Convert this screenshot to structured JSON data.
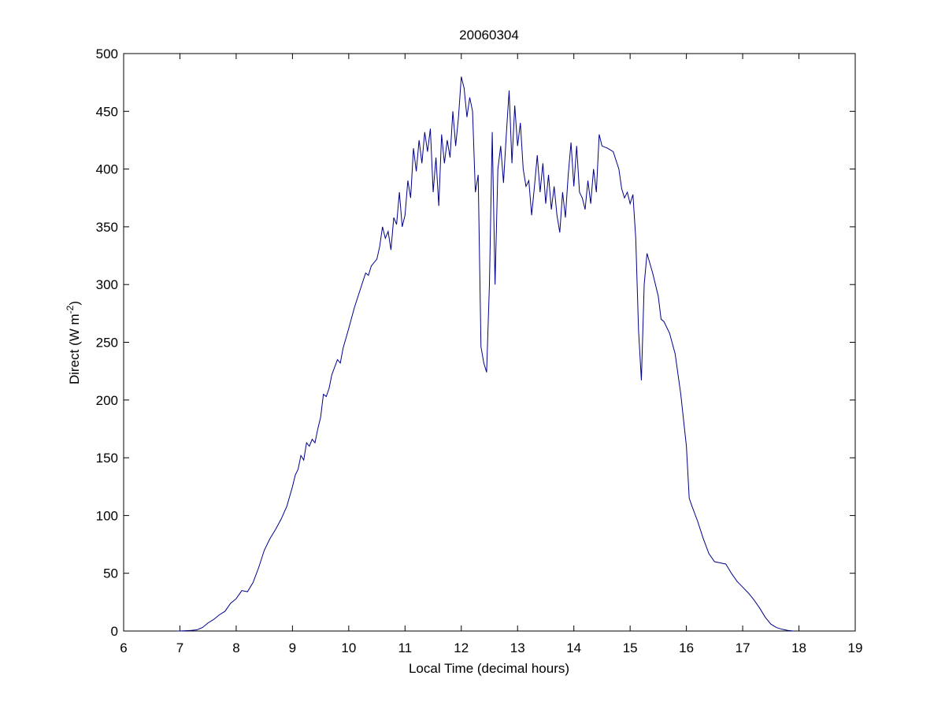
{
  "chart_data": {
    "type": "line",
    "title": "20060304",
    "xlabel": "Local Time (decimal hours)",
    "ylabel": {
      "text": "Direct (W m",
      "sup": "-2",
      "tail": ")"
    },
    "xlim": [
      6,
      19
    ],
    "xticks": [
      6,
      7,
      8,
      9,
      10,
      11,
      12,
      13,
      14,
      15,
      16,
      17,
      18,
      19
    ],
    "ylim": [
      0,
      500
    ],
    "yticks": [
      0,
      50,
      100,
      150,
      200,
      250,
      300,
      350,
      400,
      450,
      500
    ],
    "grid": false,
    "series": [
      {
        "color": "#00008b",
        "x": [
          6.95,
          7.0,
          7.2,
          7.3,
          7.4,
          7.5,
          7.6,
          7.7,
          7.8,
          7.9,
          8.0,
          8.1,
          8.2,
          8.3,
          8.4,
          8.5,
          8.6,
          8.7,
          8.8,
          8.9,
          9.0,
          9.05,
          9.1,
          9.15,
          9.2,
          9.25,
          9.3,
          9.35,
          9.4,
          9.45,
          9.5,
          9.55,
          9.6,
          9.65,
          9.7,
          9.8,
          9.85,
          9.9,
          10.0,
          10.1,
          10.2,
          10.3,
          10.35,
          10.4,
          10.5,
          10.55,
          10.6,
          10.65,
          10.7,
          10.75,
          10.8,
          10.85,
          10.9,
          10.95,
          11.0,
          11.05,
          11.1,
          11.15,
          11.2,
          11.25,
          11.3,
          11.35,
          11.4,
          11.45,
          11.5,
          11.55,
          11.6,
          11.65,
          11.7,
          11.75,
          11.8,
          11.85,
          11.9,
          11.95,
          12.0,
          12.05,
          12.1,
          12.15,
          12.2,
          12.25,
          12.3,
          12.35,
          12.4,
          12.45,
          12.5,
          12.55,
          12.6,
          12.65,
          12.7,
          12.75,
          12.8,
          12.85,
          12.9,
          12.95,
          13.0,
          13.05,
          13.1,
          13.15,
          13.2,
          13.25,
          13.3,
          13.35,
          13.4,
          13.45,
          13.5,
          13.55,
          13.6,
          13.65,
          13.7,
          13.75,
          13.8,
          13.85,
          13.9,
          13.95,
          14.0,
          14.05,
          14.1,
          14.15,
          14.2,
          14.25,
          14.3,
          14.35,
          14.4,
          14.45,
          14.5,
          14.6,
          14.7,
          14.8,
          14.85,
          14.9,
          14.95,
          15.0,
          15.05,
          15.1,
          15.15,
          15.2,
          15.25,
          15.3,
          15.4,
          15.5,
          15.55,
          15.6,
          15.7,
          15.8,
          15.9,
          16.0,
          16.05,
          16.1,
          16.2,
          16.3,
          16.4,
          16.5,
          16.6,
          16.7,
          16.8,
          16.9,
          17.0,
          17.1,
          17.2,
          17.3,
          17.4,
          17.5,
          17.6,
          17.7,
          17.8,
          17.9
        ],
        "values": [
          0,
          0,
          0.5,
          1,
          3,
          7,
          10,
          14,
          17,
          24,
          28,
          35,
          34,
          42,
          55,
          70,
          80,
          88,
          97,
          108,
          125,
          135,
          140,
          152,
          148,
          163,
          160,
          166,
          163,
          175,
          185,
          205,
          203,
          210,
          222,
          235,
          232,
          245,
          262,
          280,
          295,
          310,
          308,
          316,
          322,
          333,
          350,
          340,
          346,
          330,
          358,
          352,
          380,
          350,
          360,
          390,
          375,
          418,
          398,
          425,
          405,
          432,
          415,
          435,
          380,
          410,
          368,
          430,
          405,
          425,
          410,
          450,
          420,
          445,
          480,
          470,
          445,
          462,
          450,
          380,
          395,
          246,
          232,
          224,
          300,
          432,
          300,
          400,
          420,
          388,
          430,
          468,
          405,
          455,
          420,
          440,
          400,
          385,
          390,
          360,
          385,
          412,
          380,
          405,
          370,
          395,
          365,
          385,
          360,
          345,
          380,
          358,
          395,
          423,
          385,
          420,
          380,
          375,
          365,
          390,
          370,
          400,
          380,
          430,
          420,
          418,
          415,
          400,
          383,
          375,
          380,
          370,
          378,
          340,
          260,
          217,
          300,
          327,
          310,
          290,
          270,
          268,
          258,
          240,
          205,
          160,
          115,
          108,
          95,
          80,
          67,
          60,
          59,
          58,
          50,
          43,
          38,
          33,
          27,
          20,
          12,
          6,
          3,
          1.5,
          0.5,
          0
        ]
      }
    ]
  }
}
